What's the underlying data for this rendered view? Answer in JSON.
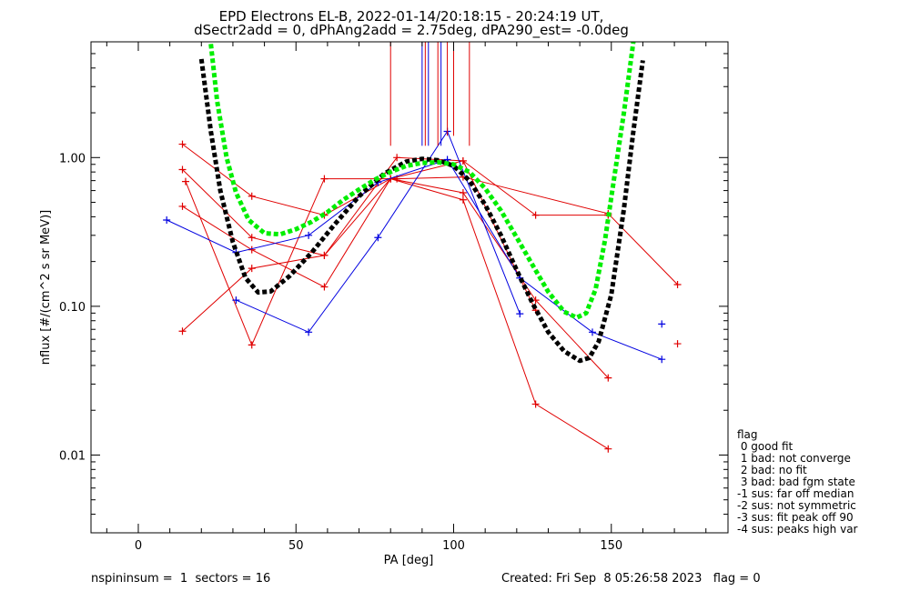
{
  "header": {
    "title_line1": "EPD Electrons EL-B, 2022-01-14/20:18:15 - 20:24:19 UT,",
    "title_line2": "dSectr2add = 0, dPhAng2add = 2.75deg, dPA290_est=  -0.0deg"
  },
  "legend": {
    "title": "flag",
    "items": [
      " 0 good fit",
      " 1 bad: not converge",
      " 2 bad: no fit",
      " 3 bad: bad fgm state",
      "-1 sus: far off median",
      "-2 sus: not symmetric",
      "-3 sus: fit peak off 90",
      "-4 sus: peaks high var"
    ]
  },
  "footer": {
    "left": "nspininsum =  1  sectors = 16",
    "right": "Created: Fri Sep  8 05:26:58 2023   flag = 0"
  },
  "chart_data": {
    "type": "line",
    "title": "EPD Electrons EL-B, 2022-01-14/20:18:15 - 20:24:19 UT, dSectr2add = 0, dPhAng2add = 2.75deg, dPA290_est=  -0.0deg",
    "xlabel": "PA [deg]",
    "ylabel": "nflux [#/(cm^2 s sr MeV)]",
    "xlim": [
      -15,
      187
    ],
    "ylim": [
      0.003,
      6.0
    ],
    "y_scale": "log",
    "x_ticks": [
      0,
      50,
      100,
      150
    ],
    "x_tick_labels": [
      "0",
      "50",
      "100",
      "150"
    ],
    "y_ticks": [
      0.01,
      0.1,
      1.0
    ],
    "y_tick_labels": [
      "0.01",
      "0.10",
      "1.00"
    ],
    "colors": {
      "red": "#e00000",
      "blue": "#0000e0",
      "black": "#000000",
      "green": "#00ee00"
    },
    "series": [
      {
        "color": "red",
        "style": "marker-line",
        "x": [
          14,
          36,
          59,
          80,
          103,
          126,
          149
        ],
        "y": [
          1.23,
          0.55,
          0.41,
          0.72,
          0.95,
          0.41,
          0.41
        ]
      },
      {
        "color": "red",
        "style": "marker-line",
        "x": [
          14,
          36,
          59,
          80,
          103,
          126,
          149
        ],
        "y": [
          0.83,
          0.29,
          0.22,
          0.72,
          0.58,
          0.11,
          0.033
        ]
      },
      {
        "color": "red",
        "style": "marker-line",
        "x": [
          14,
          36,
          59,
          80,
          103,
          126,
          149
        ],
        "y": [
          0.47,
          0.24,
          0.135,
          0.72,
          0.52,
          0.022,
          0.011
        ]
      },
      {
        "color": "red",
        "style": "marker-line",
        "x": [
          14,
          36,
          59,
          82,
          103,
          126
        ],
        "y": [
          0.068,
          0.18,
          0.22,
          1.0,
          0.95,
          0.094
        ]
      },
      {
        "color": "red",
        "style": "marker-line",
        "x": [
          15,
          36,
          59,
          82,
          103,
          149,
          171
        ],
        "y": [
          0.69,
          0.055,
          0.72,
          0.72,
          0.74,
          0.42,
          0.14
        ]
      },
      {
        "color": "red",
        "style": "marker",
        "x": [
          171
        ],
        "y": [
          0.056
        ]
      },
      {
        "color": "blue",
        "style": "marker-line",
        "x": [
          9,
          31,
          54,
          76,
          98,
          121,
          144,
          166
        ],
        "y": [
          0.38,
          0.23,
          0.3,
          0.68,
          0.97,
          0.155,
          0.067,
          0.044
        ]
      },
      {
        "color": "blue",
        "style": "marker-line",
        "x": [
          31,
          54,
          76,
          98,
          121
        ],
        "y": [
          0.11,
          0.067,
          0.29,
          1.5,
          0.089
        ]
      },
      {
        "color": "blue",
        "style": "marker",
        "x": [
          166
        ],
        "y": [
          0.076
        ]
      },
      {
        "color": "black",
        "style": "dash-curve",
        "x": [
          20,
          23,
          26,
          30,
          34,
          38,
          42,
          48,
          55,
          62,
          70,
          78,
          85,
          90,
          95,
          100,
          105,
          110,
          115,
          120,
          125,
          130,
          135,
          140,
          143,
          146,
          150,
          154,
          157,
          160
        ],
        "y": [
          4.6,
          1.5,
          0.6,
          0.27,
          0.155,
          0.124,
          0.126,
          0.16,
          0.23,
          0.35,
          0.55,
          0.78,
          0.94,
          0.98,
          0.96,
          0.88,
          0.7,
          0.48,
          0.3,
          0.175,
          0.105,
          0.067,
          0.05,
          0.043,
          0.045,
          0.058,
          0.12,
          0.45,
          1.5,
          4.5
        ]
      },
      {
        "color": "green",
        "style": "dash-curve",
        "x": [
          23,
          25,
          28,
          31,
          35,
          40,
          45,
          50,
          55,
          60,
          65,
          70,
          75,
          80,
          85,
          90,
          95,
          100,
          105,
          110,
          115,
          120,
          125,
          130,
          135,
          139,
          142,
          145,
          148,
          151,
          154,
          157
        ],
        "y": [
          5.8,
          2.4,
          1.0,
          0.58,
          0.38,
          0.31,
          0.305,
          0.33,
          0.37,
          0.43,
          0.52,
          0.61,
          0.71,
          0.8,
          0.88,
          0.92,
          0.93,
          0.9,
          0.8,
          0.62,
          0.44,
          0.29,
          0.19,
          0.125,
          0.092,
          0.084,
          0.09,
          0.13,
          0.28,
          0.75,
          2.0,
          6.0
        ]
      },
      {
        "color": "red",
        "style": "vline",
        "x": [
          80,
          91,
          95,
          98,
          100,
          105
        ],
        "y_top": 6.0,
        "y_bottom": [
          1.2,
          1.2,
          1.2,
          1.4,
          1.4,
          1.2
        ]
      },
      {
        "color": "blue",
        "style": "vline",
        "x": [
          90,
          92,
          96
        ],
        "y_top": 6.0,
        "y_bottom": [
          1.2,
          1.2,
          1.2
        ]
      }
    ]
  }
}
